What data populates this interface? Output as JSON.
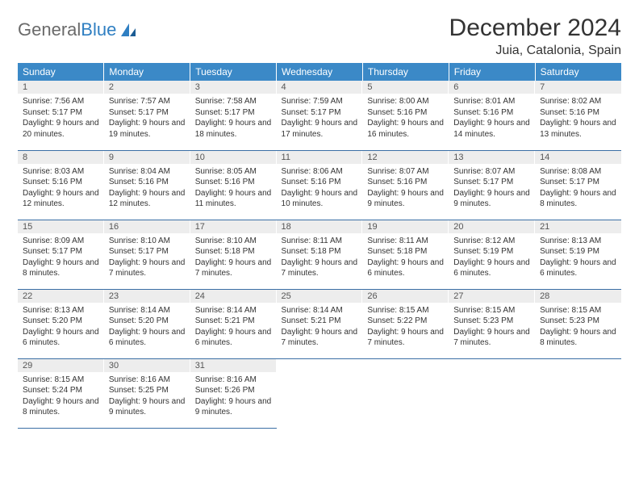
{
  "brand": {
    "word1": "General",
    "word2": "Blue"
  },
  "title": "December 2024",
  "location": "Juia, Catalonia, Spain",
  "colors": {
    "header_bg": "#3b89c7",
    "header_text": "#ffffff",
    "daynum_bg": "#ededed",
    "row_border": "#3b6fa5",
    "logo_gray": "#6a6a6a",
    "logo_blue": "#2f7fc2"
  },
  "weekdays": [
    "Sunday",
    "Monday",
    "Tuesday",
    "Wednesday",
    "Thursday",
    "Friday",
    "Saturday"
  ],
  "weeks": [
    [
      {
        "num": "1",
        "sunrise": "Sunrise: 7:56 AM",
        "sunset": "Sunset: 5:17 PM",
        "daylight": "Daylight: 9 hours and 20 minutes."
      },
      {
        "num": "2",
        "sunrise": "Sunrise: 7:57 AM",
        "sunset": "Sunset: 5:17 PM",
        "daylight": "Daylight: 9 hours and 19 minutes."
      },
      {
        "num": "3",
        "sunrise": "Sunrise: 7:58 AM",
        "sunset": "Sunset: 5:17 PM",
        "daylight": "Daylight: 9 hours and 18 minutes."
      },
      {
        "num": "4",
        "sunrise": "Sunrise: 7:59 AM",
        "sunset": "Sunset: 5:17 PM",
        "daylight": "Daylight: 9 hours and 17 minutes."
      },
      {
        "num": "5",
        "sunrise": "Sunrise: 8:00 AM",
        "sunset": "Sunset: 5:16 PM",
        "daylight": "Daylight: 9 hours and 16 minutes."
      },
      {
        "num": "6",
        "sunrise": "Sunrise: 8:01 AM",
        "sunset": "Sunset: 5:16 PM",
        "daylight": "Daylight: 9 hours and 14 minutes."
      },
      {
        "num": "7",
        "sunrise": "Sunrise: 8:02 AM",
        "sunset": "Sunset: 5:16 PM",
        "daylight": "Daylight: 9 hours and 13 minutes."
      }
    ],
    [
      {
        "num": "8",
        "sunrise": "Sunrise: 8:03 AM",
        "sunset": "Sunset: 5:16 PM",
        "daylight": "Daylight: 9 hours and 12 minutes."
      },
      {
        "num": "9",
        "sunrise": "Sunrise: 8:04 AM",
        "sunset": "Sunset: 5:16 PM",
        "daylight": "Daylight: 9 hours and 12 minutes."
      },
      {
        "num": "10",
        "sunrise": "Sunrise: 8:05 AM",
        "sunset": "Sunset: 5:16 PM",
        "daylight": "Daylight: 9 hours and 11 minutes."
      },
      {
        "num": "11",
        "sunrise": "Sunrise: 8:06 AM",
        "sunset": "Sunset: 5:16 PM",
        "daylight": "Daylight: 9 hours and 10 minutes."
      },
      {
        "num": "12",
        "sunrise": "Sunrise: 8:07 AM",
        "sunset": "Sunset: 5:16 PM",
        "daylight": "Daylight: 9 hours and 9 minutes."
      },
      {
        "num": "13",
        "sunrise": "Sunrise: 8:07 AM",
        "sunset": "Sunset: 5:17 PM",
        "daylight": "Daylight: 9 hours and 9 minutes."
      },
      {
        "num": "14",
        "sunrise": "Sunrise: 8:08 AM",
        "sunset": "Sunset: 5:17 PM",
        "daylight": "Daylight: 9 hours and 8 minutes."
      }
    ],
    [
      {
        "num": "15",
        "sunrise": "Sunrise: 8:09 AM",
        "sunset": "Sunset: 5:17 PM",
        "daylight": "Daylight: 9 hours and 8 minutes."
      },
      {
        "num": "16",
        "sunrise": "Sunrise: 8:10 AM",
        "sunset": "Sunset: 5:17 PM",
        "daylight": "Daylight: 9 hours and 7 minutes."
      },
      {
        "num": "17",
        "sunrise": "Sunrise: 8:10 AM",
        "sunset": "Sunset: 5:18 PM",
        "daylight": "Daylight: 9 hours and 7 minutes."
      },
      {
        "num": "18",
        "sunrise": "Sunrise: 8:11 AM",
        "sunset": "Sunset: 5:18 PM",
        "daylight": "Daylight: 9 hours and 7 minutes."
      },
      {
        "num": "19",
        "sunrise": "Sunrise: 8:11 AM",
        "sunset": "Sunset: 5:18 PM",
        "daylight": "Daylight: 9 hours and 6 minutes."
      },
      {
        "num": "20",
        "sunrise": "Sunrise: 8:12 AM",
        "sunset": "Sunset: 5:19 PM",
        "daylight": "Daylight: 9 hours and 6 minutes."
      },
      {
        "num": "21",
        "sunrise": "Sunrise: 8:13 AM",
        "sunset": "Sunset: 5:19 PM",
        "daylight": "Daylight: 9 hours and 6 minutes."
      }
    ],
    [
      {
        "num": "22",
        "sunrise": "Sunrise: 8:13 AM",
        "sunset": "Sunset: 5:20 PM",
        "daylight": "Daylight: 9 hours and 6 minutes."
      },
      {
        "num": "23",
        "sunrise": "Sunrise: 8:14 AM",
        "sunset": "Sunset: 5:20 PM",
        "daylight": "Daylight: 9 hours and 6 minutes."
      },
      {
        "num": "24",
        "sunrise": "Sunrise: 8:14 AM",
        "sunset": "Sunset: 5:21 PM",
        "daylight": "Daylight: 9 hours and 6 minutes."
      },
      {
        "num": "25",
        "sunrise": "Sunrise: 8:14 AM",
        "sunset": "Sunset: 5:21 PM",
        "daylight": "Daylight: 9 hours and 7 minutes."
      },
      {
        "num": "26",
        "sunrise": "Sunrise: 8:15 AM",
        "sunset": "Sunset: 5:22 PM",
        "daylight": "Daylight: 9 hours and 7 minutes."
      },
      {
        "num": "27",
        "sunrise": "Sunrise: 8:15 AM",
        "sunset": "Sunset: 5:23 PM",
        "daylight": "Daylight: 9 hours and 7 minutes."
      },
      {
        "num": "28",
        "sunrise": "Sunrise: 8:15 AM",
        "sunset": "Sunset: 5:23 PM",
        "daylight": "Daylight: 9 hours and 8 minutes."
      }
    ],
    [
      {
        "num": "29",
        "sunrise": "Sunrise: 8:15 AM",
        "sunset": "Sunset: 5:24 PM",
        "daylight": "Daylight: 9 hours and 8 minutes."
      },
      {
        "num": "30",
        "sunrise": "Sunrise: 8:16 AM",
        "sunset": "Sunset: 5:25 PM",
        "daylight": "Daylight: 9 hours and 9 minutes."
      },
      {
        "num": "31",
        "sunrise": "Sunrise: 8:16 AM",
        "sunset": "Sunset: 5:26 PM",
        "daylight": "Daylight: 9 hours and 9 minutes."
      },
      {
        "empty": true
      },
      {
        "empty": true
      },
      {
        "empty": true
      },
      {
        "empty": true
      }
    ]
  ]
}
